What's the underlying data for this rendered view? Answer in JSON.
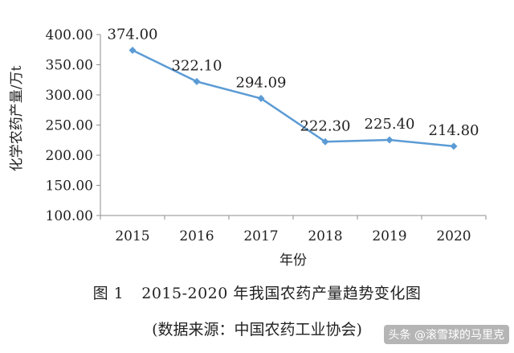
{
  "chart_data": {
    "type": "line",
    "categories": [
      "2015",
      "2016",
      "2017",
      "2018",
      "2019",
      "2020"
    ],
    "series": [
      {
        "values": [
          374.0,
          322.1,
          294.09,
          222.3,
          225.4,
          214.8
        ],
        "labels": [
          "374.00",
          "322.10",
          "294.09",
          "222.30",
          "225.40",
          "214.80"
        ]
      }
    ],
    "xlabel": "年份",
    "ylabel": "化学农药产量/万t",
    "ylim": [
      100,
      400
    ],
    "yticks": [
      "100.00",
      "150.00",
      "200.00",
      "250.00",
      "300.00",
      "350.00",
      "400.00"
    ],
    "grid": false,
    "line_color": "#5b9bd5",
    "marker": "diamond"
  },
  "caption": {
    "figure_number": "图 1",
    "text": "2015-2020 年我国农药产量趋势变化图"
  },
  "source_note": "(数据来源：中国农药工业协会)",
  "watermark": "头条 @滚雪球的马里克"
}
